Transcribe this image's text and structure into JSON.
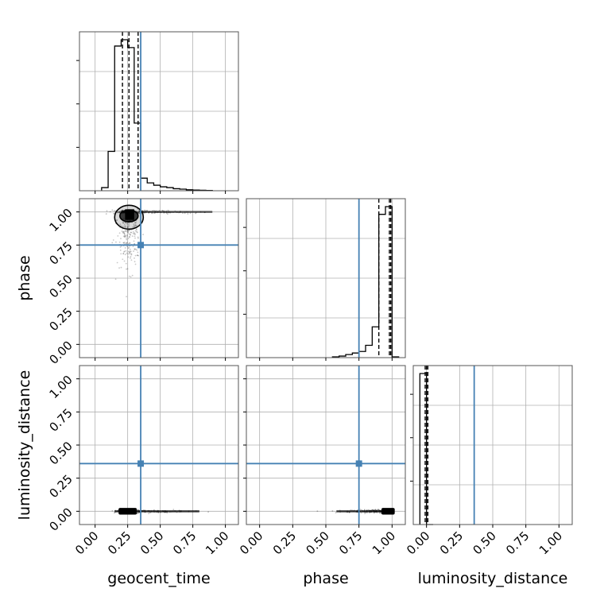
{
  "chart_data": {
    "type": "corner",
    "parameters": [
      "geocent_time",
      "phase",
      "luminosity_distance"
    ],
    "axis_labels": {
      "geocent_time": "geocent_time",
      "phase": "phase",
      "luminosity_distance": "luminosity_distance"
    },
    "truths": {
      "geocent_time": 0.35,
      "phase": 0.75,
      "luminosity_distance": 0.36
    },
    "truth_color": "#4682b4",
    "hist_color": "#000000",
    "ranges": {
      "geocent_time": [
        -0.12,
        1.1
      ],
      "phase": [
        -0.1,
        1.1
      ],
      "luminosity_distance": [
        -0.1,
        1.1
      ]
    },
    "ticks": [
      0.0,
      0.25,
      0.5,
      0.75,
      1.0
    ],
    "tick_labels": [
      "0.00",
      "0.25",
      "0.50",
      "0.75",
      "1.00"
    ],
    "histograms": {
      "geocent_time": {
        "bin_edges": [
          0.05,
          0.1,
          0.15,
          0.2,
          0.25,
          0.3,
          0.35,
          0.4,
          0.45,
          0.5,
          0.55,
          0.6,
          0.65,
          0.7,
          0.75,
          0.8,
          0.85,
          0.9
        ],
        "counts": [
          0.02,
          0.25,
          0.92,
          0.96,
          0.91,
          0.43,
          0.08,
          0.05,
          0.035,
          0.025,
          0.02,
          0.013,
          0.01,
          0.006,
          0.004,
          0.003,
          0.002
        ],
        "quantiles": [
          0.21,
          0.26,
          0.33
        ]
      },
      "phase": {
        "bin_edges": [
          0.55,
          0.6,
          0.65,
          0.7,
          0.75,
          0.8,
          0.85,
          0.9,
          0.95,
          1.0,
          1.05
        ],
        "counts": [
          0.005,
          0.01,
          0.02,
          0.03,
          0.04,
          0.08,
          0.2,
          0.93,
          0.98,
          0.005
        ],
        "quantiles": [
          0.9,
          0.98,
          0.99
        ]
      },
      "luminosity_distance": {
        "bin_edges": [
          -0.05,
          0.0,
          0.05
        ],
        "counts": [
          1.0,
          0.0
        ],
        "quantiles": [
          -0.01,
          0.0,
          0.01
        ]
      }
    },
    "contours": {
      "geocent_time__phase": {
        "samples_region": {
          "x_range": [
            0.05,
            0.95
          ],
          "y_center": 1.0,
          "y_tail_min": 0.35
        },
        "levels": [
          {
            "cx": 0.26,
            "cy": 0.97,
            "rx": 0.07,
            "ry": 0.045
          },
          {
            "cx": 0.26,
            "cy": 0.96,
            "rx": 0.11,
            "ry": 0.09
          }
        ]
      },
      "geocent_time__luminosity_distance": {
        "samples_region": {
          "x_range": [
            0.05,
            0.95
          ],
          "y_center": 0.0
        },
        "core": {
          "x": [
            0.18,
            0.32
          ],
          "y": [
            -0.025,
            0.025
          ]
        }
      },
      "phase__luminosity_distance": {
        "samples_region": {
          "x_range": [
            0.3,
            1.0
          ],
          "y_center": 0.0
        },
        "core": {
          "x": [
            0.92,
            1.02
          ],
          "y": [
            -0.025,
            0.025
          ]
        }
      }
    },
    "grid": true
  }
}
